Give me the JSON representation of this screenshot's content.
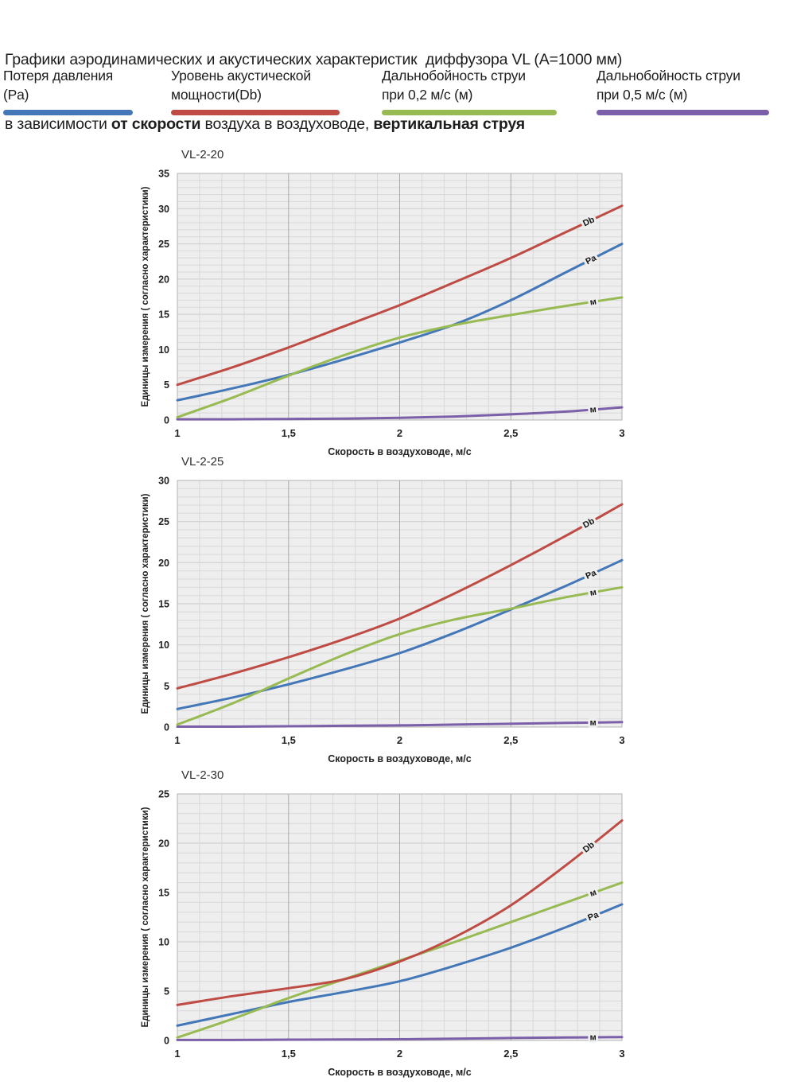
{
  "header": {
    "line1": "Графики аэродинамических и акустических характеристик  диффузора VL (A=1000 мм)",
    "line2_prefix": "в зависимости ",
    "line2_bold1": "от скорости",
    "line2_mid": " воздуха в воздуховоде, ",
    "line2_bold2": "вертикальная струя"
  },
  "legend": {
    "items": [
      {
        "line1": "Потеря давления",
        "line2": "(Pa)",
        "color_key": "blue"
      },
      {
        "line1": "Уровень акустической",
        "line2": "мощности(Db)",
        "color_key": "red"
      },
      {
        "line1": "Дальнобойность струи",
        "line2": "при 0,2 м/с (м)",
        "color_key": "green"
      },
      {
        "line1": "Дальнобойность струи",
        "line2": "при 0,5 м/с (м)",
        "color_key": "purple"
      }
    ]
  },
  "axes": {
    "xlabel": "Скорость в воздуховоде, м/с",
    "ylabel": "Единицы измерения ( согласно характеристики)"
  },
  "colors": {
    "blue": "#4377b8",
    "red": "#bf4b45",
    "green": "#97ba52",
    "purple": "#7b5fa8",
    "plot_bg": "#eeeeee",
    "grid_minor": "#d8d8d8",
    "grid_major_h": "#cbcbcb",
    "grid_major_v": "#a9a9a9",
    "border": "#b3b3b3",
    "text": "#1d1d1d"
  },
  "chart_data": [
    {
      "type": "line",
      "title": "VL-2-20",
      "xlabel": "Скорость в воздуховоде, м/с",
      "ylabel": "Единицы измерения ( согласно характеристики)",
      "xlim": [
        1,
        3
      ],
      "ylim": [
        0,
        35
      ],
      "ytick_step": 5,
      "grid": true,
      "xticks": [
        {
          "v": 1,
          "label": "1"
        },
        {
          "v": 1.5,
          "label": "1,5"
        },
        {
          "v": 2,
          "label": "2"
        },
        {
          "v": 2.5,
          "label": "2,5"
        },
        {
          "v": 3,
          "label": "3"
        }
      ],
      "x": [
        1,
        1.25,
        1.5,
        1.75,
        2,
        2.25,
        2.5,
        2.75,
        3
      ],
      "series": [
        {
          "name": "Уровень акустической мощности(Db)",
          "key": "db",
          "color_key": "red",
          "curve_label": "Db",
          "label_x": 2.85,
          "values": [
            5.0,
            7.5,
            10.3,
            13.3,
            16.3,
            19.6,
            23.0,
            26.7,
            30.4
          ]
        },
        {
          "name": "Потеря давления (Pa)",
          "key": "pa",
          "color_key": "blue",
          "curve_label": "Pa",
          "label_x": 2.86,
          "values": [
            2.8,
            4.5,
            6.4,
            8.6,
            11.0,
            13.6,
            17.0,
            21.0,
            25.0
          ]
        },
        {
          "name": "Дальнобойность струи при 0,2 м/с (м)",
          "key": "m02",
          "color_key": "green",
          "curve_label": "м",
          "label_x": 2.87,
          "values": [
            0.4,
            3.2,
            6.3,
            9.2,
            11.7,
            13.5,
            14.9,
            16.2,
            17.4
          ]
        },
        {
          "name": "Дальнобойность струи при 0,5 м/с (м)",
          "key": "m05",
          "color_key": "purple",
          "curve_label": "м",
          "label_x": 2.87,
          "values": [
            0.1,
            0.1,
            0.15,
            0.2,
            0.3,
            0.5,
            0.8,
            1.2,
            1.8
          ]
        }
      ]
    },
    {
      "type": "line",
      "title": "VL-2-25",
      "xlabel": "Скорость в воздуховоде, м/с",
      "ylabel": "Единицы измерения ( согласно характеристики)",
      "xlim": [
        1,
        3
      ],
      "ylim": [
        0,
        30
      ],
      "ytick_step": 5,
      "grid": true,
      "xticks": [
        {
          "v": 1,
          "label": "1"
        },
        {
          "v": 1.5,
          "label": "1,5"
        },
        {
          "v": 2,
          "label": "2"
        },
        {
          "v": 2.5,
          "label": "2,5"
        },
        {
          "v": 3,
          "label": "3"
        }
      ],
      "x": [
        1,
        1.25,
        1.5,
        1.75,
        2,
        2.25,
        2.5,
        2.75,
        3
      ],
      "series": [
        {
          "name": "Уровень акустической мощности(Db)",
          "key": "db",
          "color_key": "red",
          "curve_label": "Db",
          "label_x": 2.85,
          "values": [
            4.7,
            6.5,
            8.5,
            10.7,
            13.2,
            16.3,
            19.7,
            23.3,
            27.1
          ]
        },
        {
          "name": "Потеря давления (Pa)",
          "key": "pa",
          "color_key": "blue",
          "curve_label": "Pa",
          "label_x": 2.86,
          "values": [
            2.2,
            3.6,
            5.2,
            7.0,
            9.0,
            11.5,
            14.3,
            17.2,
            20.3
          ]
        },
        {
          "name": "Дальнобойность струи при 0,2 м/с (м)",
          "key": "m02",
          "color_key": "green",
          "curve_label": "м",
          "label_x": 2.87,
          "values": [
            0.3,
            2.9,
            5.9,
            8.8,
            11.3,
            13.1,
            14.4,
            15.8,
            17.0
          ]
        },
        {
          "name": "Дальнобойность струи при 0,5 м/с (м)",
          "key": "m05",
          "color_key": "purple",
          "curve_label": "м",
          "label_x": 2.87,
          "values": [
            0.05,
            0.05,
            0.1,
            0.15,
            0.2,
            0.3,
            0.4,
            0.5,
            0.6
          ]
        }
      ]
    },
    {
      "type": "line",
      "title": "VL-2-30",
      "xlabel": "Скорость в воздуховоде, м/с",
      "ylabel": "Единицы измерения ( согласно характеристики)",
      "xlim": [
        1,
        3
      ],
      "ylim": [
        0,
        25
      ],
      "ytick_step": 5,
      "grid": true,
      "xticks": [
        {
          "v": 1,
          "label": "1"
        },
        {
          "v": 1.5,
          "label": "1,5"
        },
        {
          "v": 2,
          "label": "2"
        },
        {
          "v": 2.5,
          "label": "2,5"
        },
        {
          "v": 3,
          "label": "3"
        }
      ],
      "x": [
        1,
        1.25,
        1.5,
        1.75,
        2,
        2.25,
        2.5,
        2.75,
        3
      ],
      "series": [
        {
          "name": "Уровень акустической мощности(Db)",
          "key": "db",
          "color_key": "red",
          "curve_label": "Db",
          "label_x": 2.85,
          "values": [
            3.6,
            4.5,
            5.3,
            6.2,
            8.0,
            10.5,
            13.7,
            17.8,
            22.3
          ]
        },
        {
          "name": "Потеря давления (Pa)",
          "key": "pa",
          "color_key": "blue",
          "curve_label": "Pa",
          "label_x": 2.87,
          "values": [
            1.5,
            2.7,
            3.9,
            4.9,
            6.0,
            7.6,
            9.4,
            11.5,
            13.8
          ]
        },
        {
          "name": "Дальнобойность струи при 0,2 м/с (м)",
          "key": "m02",
          "color_key": "green",
          "curve_label": "м",
          "label_x": 2.87,
          "values": [
            0.3,
            2.2,
            4.3,
            6.2,
            8.1,
            10.0,
            12.0,
            14.0,
            16.0
          ]
        },
        {
          "name": "Дальнобойность струи при 0,5 м/с (м)",
          "key": "m05",
          "color_key": "purple",
          "curve_label": "м",
          "label_x": 2.87,
          "values": [
            0.05,
            0.05,
            0.08,
            0.1,
            0.12,
            0.18,
            0.25,
            0.3,
            0.35
          ]
        }
      ]
    }
  ]
}
